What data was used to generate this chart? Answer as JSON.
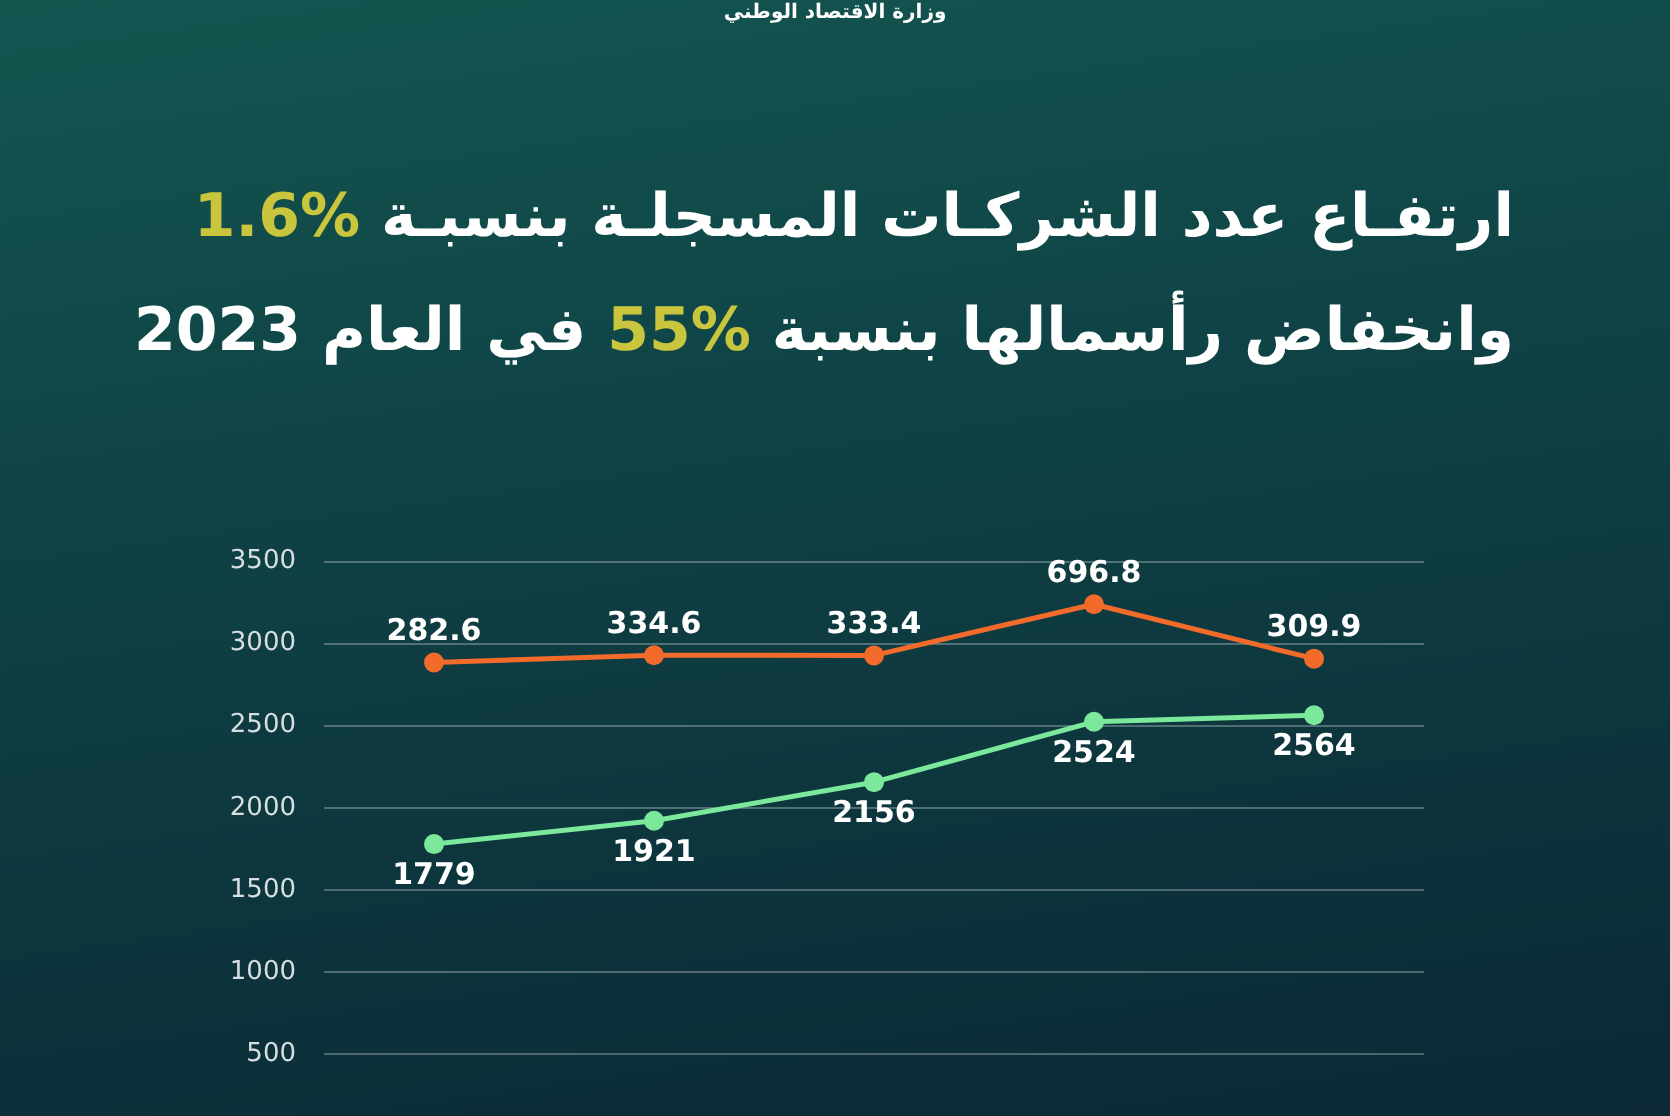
{
  "chart_data": {
    "type": "line",
    "title": "ارتفـاع عدد الشركـات المسجلـة بنسبـة %1.6\nوانخفاض رأسمالها بنسبة %55 في العام 2023",
    "annotations": [
      "وزارة الاقتصاد الوطني"
    ],
    "categories": [
      null,
      null,
      null,
      null,
      null
    ],
    "series": [
      {
        "color": "#7be89c",
        "values": [
          1779,
          1921,
          2156,
          2524,
          2564
        ]
      },
      {
        "color": "#f36b2b",
        "values": [
          282.6,
          334.6,
          333.4,
          696.8,
          309.9
        ],
        "axis": "y2"
      }
    ],
    "ylim": [
      500,
      3500
    ],
    "yticks": [
      500,
      1000,
      1500,
      2000,
      2500,
      3000,
      3500
    ],
    "data_labels": true,
    "grid": "y",
    "legend": false,
    "marker": "circle",
    "line_style": "solid"
  }
}
